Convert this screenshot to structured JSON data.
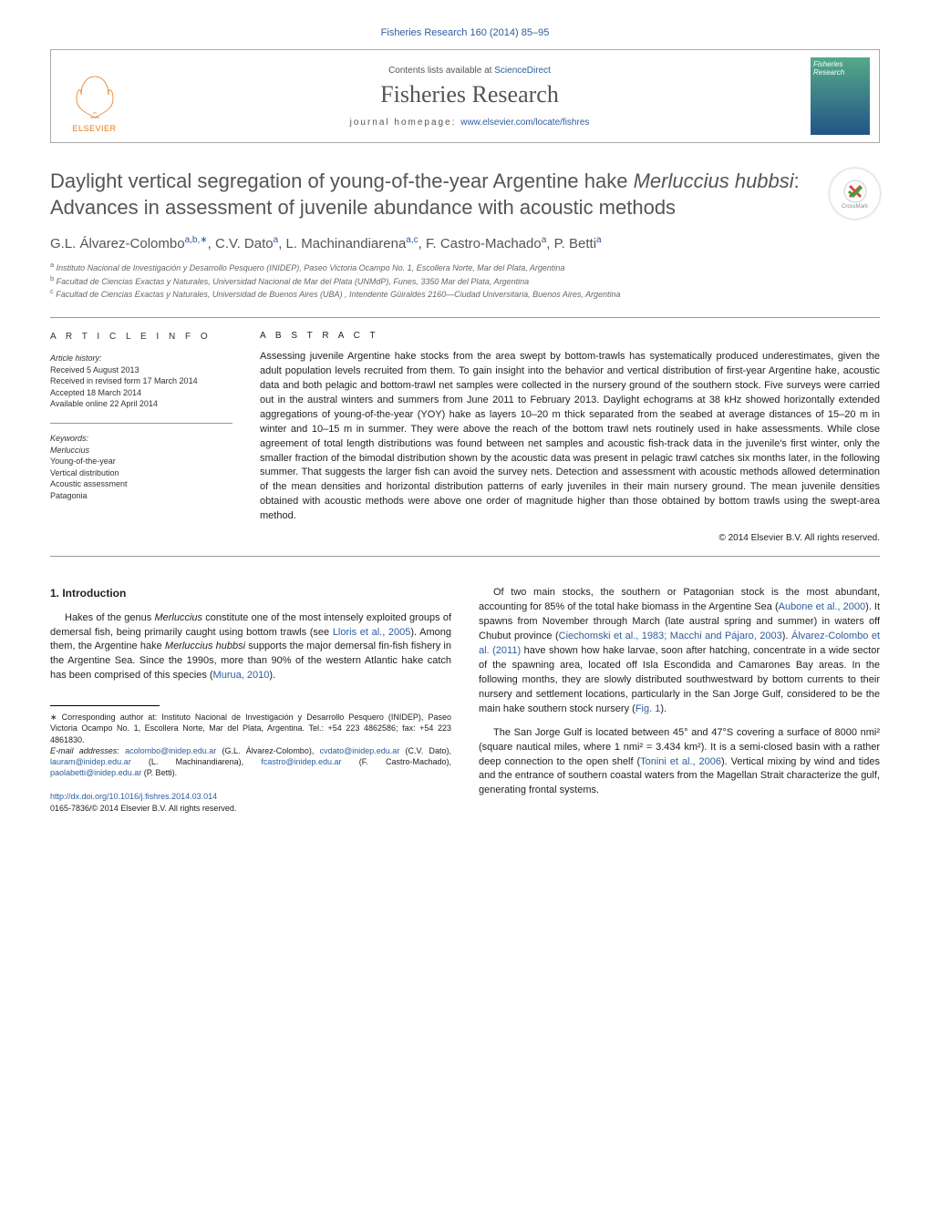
{
  "header": {
    "journal_ref": "Fisheries Research 160 (2014) 85–95",
    "contents_pre": "Contents lists available at ",
    "contents_link": "ScienceDirect",
    "journal_name": "Fisheries Research",
    "homepage_pre": "journal homepage: ",
    "homepage_link": "www.elsevier.com/locate/fishres",
    "elsevier": "ELSEVIER",
    "cover_text": "Fisheries Research"
  },
  "crossmark": "CrossMark",
  "title_pre": "Daylight vertical segregation of young-of-the-year Argentine hake ",
  "title_em": "Merluccius hubbsi",
  "title_post": ": Advances in assessment of juvenile abundance with acoustic methods",
  "authors": [
    {
      "name": "G.L. Álvarez-Colombo",
      "sup": "a,b,∗"
    },
    {
      "name": "C.V. Dato",
      "sup": "a"
    },
    {
      "name": "L. Machinandiarena",
      "sup": "a,c"
    },
    {
      "name": "F. Castro-Machado",
      "sup": "a"
    },
    {
      "name": "P. Betti",
      "sup": "a"
    }
  ],
  "affiliations": [
    {
      "sup": "a",
      "text": "Instituto Nacional de Investigación y Desarrollo Pesquero (INIDEP), Paseo Victoria Ocampo No. 1, Escollera Norte, Mar del Plata, Argentina"
    },
    {
      "sup": "b",
      "text": "Facultad de Ciencias Exactas y Naturales, Universidad Nacional de Mar del Plata (UNMdP), Funes, 3350 Mar del Plata, Argentina"
    },
    {
      "sup": "c",
      "text": "Facultad de Ciencias Exactas y Naturales, Universidad de Buenos Aires (UBA) , Intendente Güiraldes 2160—Ciudad Universitaria, Buenos Aires, Argentina"
    }
  ],
  "info": {
    "heading": "A R T I C L E   I N F O",
    "history_label": "Article history:",
    "received": "Received 5 August 2013",
    "revised": "Received in revised form 17 March 2014",
    "accepted": "Accepted 18 March 2014",
    "online": "Available online 22 April 2014",
    "keywords_label": "Keywords:",
    "keywords": [
      "Merluccius",
      "Young-of-the-year",
      "Vertical distribution",
      "Acoustic assessment",
      "Patagonia"
    ]
  },
  "abstract": {
    "heading": "A B S T R A C T",
    "text": "Assessing juvenile Argentine hake stocks from the area swept by bottom-trawls has systematically produced underestimates, given the adult population levels recruited from them. To gain insight into the behavior and vertical distribution of first-year Argentine hake, acoustic data and both pelagic and bottom-trawl net samples were collected in the nursery ground of the southern stock. Five surveys were carried out in the austral winters and summers from June 2011 to February 2013. Daylight echograms at 38 kHz showed horizontally extended aggregations of young-of-the-year (YOY) hake as layers 10–20 m thick separated from the seabed at average distances of 15–20 m in winter and 10–15 m in summer. They were above the reach of the bottom trawl nets routinely used in hake assessments. While close agreement of total length distributions was found between net samples and acoustic fish-track data in the juvenile's first winter, only the smaller fraction of the bimodal distribution shown by the acoustic data was present in pelagic trawl catches six months later, in the following summer. That suggests the larger fish can avoid the survey nets. Detection and assessment with acoustic methods allowed determination of the mean densities and horizontal distribution patterns of early juveniles in their main nursery ground. The mean juvenile densities obtained with acoustic methods were above one order of magnitude higher than those obtained by bottom trawls using the swept-area method.",
    "copyright": "© 2014 Elsevier B.V. All rights reserved."
  },
  "body": {
    "section_heading": "1.  Introduction",
    "left": [
      {
        "pre": "Hakes of the genus ",
        "em": "Merluccius",
        "mid": " constitute one of the most intensely exploited groups of demersal fish, being primarily caught using bottom trawls (see ",
        "link1": "Lloris et al., 2005",
        "mid2": "). Among them, the Argentine hake ",
        "em2": "Merluccius hubbsi",
        "post": " supports the major demersal fin-fish fishery in the Argentine Sea. Since the 1990s, more than 90% of the western Atlantic hake catch has been comprised of this species (",
        "link2": "Murua, 2010",
        "post2": ")."
      }
    ],
    "right": [
      {
        "text": "Of two main stocks, the southern or Patagonian stock is the most abundant, accounting for 85% of the total hake biomass in the Argentine Sea (",
        "link1": "Aubone et al., 2000",
        "mid": "). It spawns from November through March (late austral spring and summer) in waters off Chubut province (",
        "link2": "Ciechomski et al., 1983; Macchi and Pájaro, 2003",
        "mid2": "). ",
        "link3": "Álvarez-Colombo et al. (2011)",
        "post": " have shown how hake larvae, soon after hatching, concentrate in a wide sector of the spawning area, located off Isla Escondida and Camarones Bay areas. In the following months, they are slowly distributed southwestward by bottom currents to their nursery and settlement locations, particularly in the San Jorge Gulf, considered to be the main hake southern stock nursery (",
        "link4": "Fig. 1",
        "post2": ")."
      },
      {
        "text": "The San Jorge Gulf is located between 45° and 47°S covering a surface of 8000 nmi² (square nautical miles, where 1 nmi² = 3.434 km²). It is a semi-closed basin with a rather deep connection to the open shelf (",
        "link1": "Tonini et al., 2006",
        "post": "). Vertical mixing by wind and tides and the entrance of southern coastal waters from the Magellan Strait characterize the gulf, generating frontal systems."
      }
    ]
  },
  "footnotes": {
    "corr": "∗ Corresponding author at: Instituto Nacional de Investigación y Desarrollo Pesquero (INIDEP), Paseo Victoria Ocampo No. 1, Escollera Norte, Mar del Plata, Argentina. Tel.: +54 223 4862586; fax: +54 223 4861830.",
    "emails_label": "E-mail addresses: ",
    "emails": [
      {
        "addr": "acolombo@inidep.edu.ar",
        "who": " (G.L. Álvarez-Colombo), "
      },
      {
        "addr": "cvdato@inidep.edu.ar",
        "who": " (C.V. Dato), "
      },
      {
        "addr": "lauram@inidep.edu.ar",
        "who": " (L. Machinandiarena), "
      },
      {
        "addr": "fcastro@inidep.edu.ar",
        "who": " (F. Castro-Machado), "
      },
      {
        "addr": "paolabetti@inidep.edu.ar",
        "who": " (P. Betti)."
      }
    ]
  },
  "doi": {
    "link": "http://dx.doi.org/10.1016/j.fishres.2014.03.014",
    "issn": "0165-7836/© 2014 Elsevier B.V. All rights reserved."
  },
  "colors": {
    "link": "#2e5c9e",
    "elsevier_orange": "#e67817",
    "grey_text": "#555555"
  }
}
